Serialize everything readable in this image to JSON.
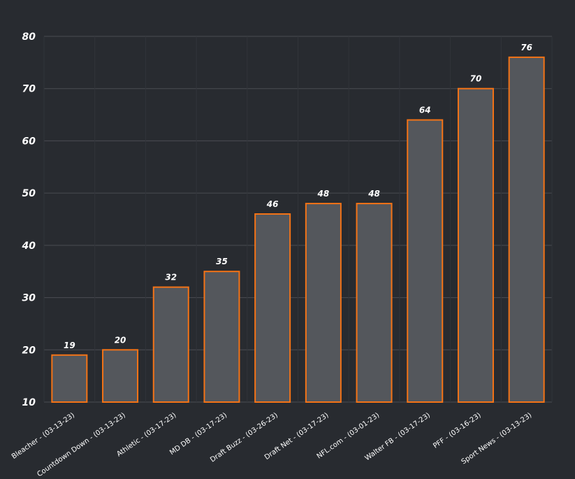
{
  "colors": {
    "background": "#282b30",
    "bar_fill": "#54575c",
    "bar_stroke": "#f47316",
    "gridline": "#4a4d52",
    "text": "#ffffff"
  },
  "chart_data": {
    "type": "bar",
    "title": "",
    "xlabel": "",
    "ylabel": "",
    "ylim": [
      10,
      80
    ],
    "yticks": [
      10,
      20,
      30,
      40,
      50,
      60,
      70,
      80
    ],
    "grid": true,
    "categories": [
      "Bleacher - (03-13-23)",
      "Countdown Down - (03-13-23)",
      "Athletic - (03-17-23)",
      "MD DB - (03-17-23)",
      "Draft Buzz - (03-26-23)",
      "Draft Net - (03-17-23)",
      "NFL.com - (03-01-23)",
      "Walter FB - (03-17-23)",
      "PFF - (03-16-23)",
      "Sport News - (03-13-23)"
    ],
    "values": [
      19,
      20,
      32,
      35,
      46,
      48,
      48,
      64,
      70,
      76
    ]
  }
}
